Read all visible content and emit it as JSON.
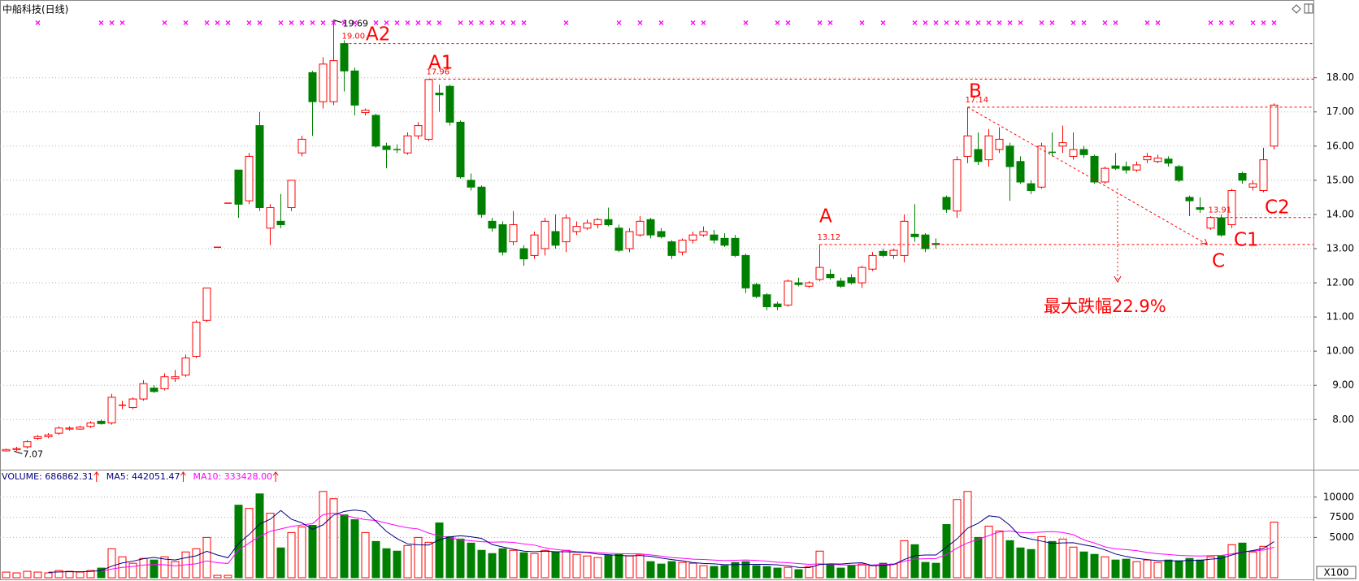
{
  "chart_data": {
    "type": "candlestick",
    "title": "中船科技(日线)",
    "candles": [
      [
        7.08,
        7.15,
        7.07,
        7.12
      ],
      [
        7.12,
        7.2,
        7.08,
        7.15
      ],
      [
        7.2,
        7.4,
        7.15,
        7.35
      ],
      [
        7.45,
        7.55,
        7.4,
        7.5
      ],
      [
        7.5,
        7.6,
        7.45,
        7.55
      ],
      [
        7.6,
        7.8,
        7.55,
        7.75
      ],
      [
        7.72,
        7.8,
        7.68,
        7.75
      ],
      [
        7.72,
        7.82,
        7.7,
        7.78
      ],
      [
        7.8,
        7.95,
        7.75,
        7.9
      ],
      [
        7.95,
        8.0,
        7.85,
        7.88
      ],
      [
        7.9,
        8.75,
        7.85,
        8.65
      ],
      [
        8.4,
        8.55,
        8.3,
        8.42
      ],
      [
        8.35,
        8.65,
        8.3,
        8.6
      ],
      [
        8.6,
        9.15,
        8.55,
        9.05
      ],
      [
        8.92,
        9.0,
        8.78,
        8.82
      ],
      [
        8.9,
        9.35,
        8.85,
        9.25
      ],
      [
        9.2,
        9.45,
        9.1,
        9.25
      ],
      [
        9.3,
        9.9,
        9.25,
        9.8
      ],
      [
        9.85,
        10.9,
        9.8,
        10.85
      ],
      [
        10.9,
        11.85,
        10.85,
        11.85
      ],
      [
        13.04,
        13.04,
        13.04,
        13.04
      ],
      [
        14.33,
        14.33,
        14.33,
        14.33
      ],
      [
        15.3,
        15.3,
        13.9,
        14.3
      ],
      [
        14.4,
        15.8,
        14.3,
        15.7
      ],
      [
        16.6,
        17.0,
        14.1,
        14.2
      ],
      [
        13.6,
        14.3,
        13.1,
        14.2
      ],
      [
        13.8,
        14.6,
        13.6,
        13.7
      ],
      [
        14.2,
        15.0,
        14.1,
        15.0
      ],
      [
        15.8,
        16.3,
        15.7,
        16.2
      ],
      [
        18.15,
        18.2,
        16.3,
        17.3
      ],
      [
        17.3,
        18.6,
        17.1,
        18.4
      ],
      [
        17.3,
        19.69,
        17.2,
        18.5
      ],
      [
        19.0,
        19.1,
        17.6,
        18.2
      ],
      [
        18.2,
        18.3,
        16.9,
        17.2
      ],
      [
        16.98,
        17.1,
        16.9,
        17.05
      ],
      [
        16.9,
        16.95,
        15.95,
        16.0
      ],
      [
        16.0,
        16.1,
        15.35,
        15.9
      ],
      [
        15.9,
        16.05,
        15.8,
        15.88
      ],
      [
        15.8,
        16.4,
        15.75,
        16.3
      ],
      [
        16.3,
        16.7,
        16.2,
        16.6
      ],
      [
        16.2,
        17.96,
        16.15,
        17.95
      ],
      [
        17.55,
        17.8,
        17.0,
        17.5
      ],
      [
        17.75,
        17.8,
        16.6,
        16.7
      ],
      [
        16.7,
        16.75,
        15.05,
        15.1
      ],
      [
        15.0,
        15.2,
        14.7,
        14.8
      ],
      [
        14.8,
        14.85,
        13.9,
        14.0
      ],
      [
        13.8,
        13.9,
        13.5,
        13.6
      ],
      [
        13.7,
        13.8,
        12.8,
        12.9
      ],
      [
        13.2,
        14.1,
        13.1,
        13.7
      ],
      [
        13.0,
        13.1,
        12.5,
        12.7
      ],
      [
        12.8,
        13.5,
        12.7,
        13.4
      ],
      [
        13.0,
        13.9,
        12.8,
        13.8
      ],
      [
        13.5,
        14.0,
        13.0,
        13.1
      ],
      [
        13.2,
        14.0,
        12.9,
        13.9
      ],
      [
        13.5,
        13.8,
        13.4,
        13.65
      ],
      [
        13.6,
        13.85,
        13.55,
        13.75
      ],
      [
        13.7,
        13.9,
        13.6,
        13.85
      ],
      [
        13.85,
        14.2,
        13.65,
        13.7
      ],
      [
        13.6,
        13.7,
        12.9,
        12.95
      ],
      [
        13.0,
        13.6,
        12.9,
        13.5
      ],
      [
        13.4,
        13.95,
        13.35,
        13.8
      ],
      [
        13.85,
        13.9,
        13.3,
        13.4
      ],
      [
        13.5,
        13.6,
        13.3,
        13.35
      ],
      [
        13.2,
        13.25,
        12.7,
        12.8
      ],
      [
        12.9,
        13.3,
        12.8,
        13.25
      ],
      [
        13.25,
        13.5,
        13.15,
        13.4
      ],
      [
        13.4,
        13.65,
        13.35,
        13.5
      ],
      [
        13.4,
        13.55,
        13.15,
        13.25
      ],
      [
        13.3,
        13.45,
        13.05,
        13.1
      ],
      [
        13.3,
        13.4,
        12.75,
        12.8
      ],
      [
        12.8,
        12.85,
        11.7,
        11.85
      ],
      [
        11.95,
        12.0,
        11.55,
        11.6
      ],
      [
        11.65,
        11.7,
        11.2,
        11.3
      ],
      [
        11.38,
        11.45,
        11.2,
        11.3
      ],
      [
        11.35,
        12.1,
        11.3,
        12.05
      ],
      [
        12.0,
        12.15,
        11.9,
        11.95
      ],
      [
        11.9,
        12.05,
        11.85,
        12.0
      ],
      [
        12.1,
        13.12,
        12.05,
        12.45
      ],
      [
        12.25,
        12.4,
        12.1,
        12.15
      ],
      [
        12.05,
        12.15,
        11.85,
        11.9
      ],
      [
        12.15,
        12.25,
        11.95,
        12.0
      ],
      [
        12.0,
        12.5,
        11.85,
        12.45
      ],
      [
        12.4,
        12.9,
        12.35,
        12.8
      ],
      [
        12.92,
        13.0,
        12.75,
        12.8
      ],
      [
        12.8,
        13.0,
        12.7,
        12.95
      ],
      [
        12.8,
        14.0,
        12.6,
        13.8
      ],
      [
        13.42,
        14.3,
        13.2,
        13.35
      ],
      [
        13.4,
        13.45,
        12.9,
        13.0
      ],
      [
        13.15,
        13.3,
        13.0,
        13.12
      ],
      [
        14.5,
        14.55,
        14.05,
        14.15
      ],
      [
        14.1,
        15.7,
        13.9,
        15.6
      ],
      [
        15.7,
        17.14,
        15.5,
        16.3
      ],
      [
        15.9,
        16.4,
        15.45,
        15.55
      ],
      [
        15.6,
        16.5,
        15.4,
        16.3
      ],
      [
        15.9,
        16.55,
        15.8,
        16.2
      ],
      [
        16.0,
        16.1,
        14.4,
        15.4
      ],
      [
        15.55,
        15.7,
        14.9,
        14.95
      ],
      [
        14.9,
        15.0,
        14.6,
        14.7
      ],
      [
        14.8,
        16.1,
        14.75,
        16.0
      ],
      [
        15.82,
        16.4,
        15.7,
        15.8
      ],
      [
        16.0,
        16.6,
        15.8,
        16.1
      ],
      [
        15.7,
        16.4,
        15.6,
        15.9
      ],
      [
        15.9,
        16.0,
        15.65,
        15.75
      ],
      [
        15.7,
        15.75,
        14.9,
        14.95
      ],
      [
        14.95,
        15.4,
        14.9,
        15.35
      ],
      [
        15.42,
        15.8,
        15.3,
        15.35
      ],
      [
        15.4,
        15.55,
        15.2,
        15.3
      ],
      [
        15.3,
        15.55,
        15.25,
        15.45
      ],
      [
        15.6,
        15.8,
        15.5,
        15.7
      ],
      [
        15.55,
        15.75,
        15.5,
        15.65
      ],
      [
        15.62,
        15.7,
        15.4,
        15.5
      ],
      [
        15.4,
        15.45,
        14.95,
        15.0
      ],
      [
        14.5,
        14.55,
        13.95,
        14.4
      ],
      [
        14.2,
        14.5,
        14.05,
        14.15
      ],
      [
        13.6,
        13.95,
        13.55,
        13.91
      ],
      [
        13.9,
        14.0,
        13.35,
        13.4
      ],
      [
        13.7,
        14.75,
        13.6,
        14.7
      ],
      [
        15.2,
        15.25,
        14.9,
        15.0
      ],
      [
        14.8,
        15.0,
        14.7,
        14.9
      ],
      [
        14.7,
        15.95,
        14.65,
        15.6
      ],
      [
        16.0,
        17.25,
        15.9,
        17.2
      ]
    ],
    "up_color": "#ff0000",
    "down_color": "#008000",
    "ylim": [
      6.58,
      20.18
    ],
    "yticks": [
      {
        "value": 8,
        "label": "8.00"
      },
      {
        "value": 9,
        "label": "9.00"
      },
      {
        "value": 10,
        "label": "10.00"
      },
      {
        "value": 11,
        "label": "11.00"
      },
      {
        "value": 12,
        "label": "12.00"
      },
      {
        "value": 13,
        "label": "13.00"
      },
      {
        "value": 14,
        "label": "14.00"
      },
      {
        "value": 15,
        "label": "15.00"
      },
      {
        "value": 16,
        "label": "16.00"
      },
      {
        "value": 17,
        "label": "17.00"
      },
      {
        "value": 18,
        "label": "18.00"
      }
    ],
    "grid": true,
    "high_label": {
      "value": 19.69,
      "label": "19.69"
    },
    "low_label": {
      "value": 7.07,
      "label": "7.07"
    },
    "levels": [
      {
        "value": 19.0,
        "label": "19.00"
      },
      {
        "value": 17.96,
        "label": "17.96"
      },
      {
        "value": 17.14,
        "label": "17.14"
      },
      {
        "value": 13.91,
        "label": "13.91"
      },
      {
        "value": 13.12,
        "label": "13.12"
      }
    ],
    "annotations": [
      "A2",
      "A1",
      "B",
      "A",
      "C",
      "C1",
      "C2",
      "最大跌幅22.9%"
    ],
    "signals": [
      3,
      9,
      10,
      11,
      15,
      17,
      19,
      20,
      21,
      23,
      24,
      26,
      27,
      28,
      29,
      30,
      31,
      32,
      33,
      35,
      36,
      37,
      38,
      39,
      40,
      41,
      43,
      44,
      45,
      46,
      47,
      48,
      49,
      53,
      58,
      60,
      62,
      65,
      66,
      70,
      73,
      74,
      77,
      78,
      81,
      83,
      86,
      87,
      88,
      89,
      90,
      91,
      92,
      93,
      94,
      95,
      96,
      98,
      99,
      101,
      102,
      104,
      105,
      108,
      109,
      114,
      115,
      116,
      118,
      119,
      120
    ],
    "signal_color": "#ff00ff",
    "volume_label": "VOLUME: 686862.31",
    "ma5_label": "MA5: 442051.47",
    "ma10_label": "MA10: 333428.00",
    "volume_unit": "X100",
    "volume": [
      700,
      600,
      800,
      700,
      600,
      900,
      800,
      700,
      900,
      1200,
      3600,
      2600,
      1800,
      2400,
      2200,
      2600,
      2000,
      3200,
      3600,
      5000,
      300,
      300,
      9000,
      8600,
      10400,
      8000,
      3700,
      5600,
      6300,
      6500,
      10700,
      9800,
      7800,
      7200,
      5600,
      4500,
      3600,
      3300,
      4000,
      5000,
      4400,
      6800,
      5100,
      4800,
      4300,
      3400,
      3000,
      3600,
      3400,
      3100,
      3000,
      3400,
      3200,
      3400,
      2900,
      2700,
      2500,
      2800,
      2900,
      2700,
      2900,
      2000,
      1700,
      2000,
      1900,
      1800,
      1500,
      1400,
      1500,
      1900,
      2000,
      1500,
      1400,
      1200,
      1300,
      1000,
      1400,
      3300,
      1600,
      1200,
      1500,
      1700,
      1500,
      1800,
      1700,
      4600,
      4100,
      1900,
      1800,
      6600,
      9700,
      10700,
      5000,
      6400,
      5800,
      4600,
      3700,
      3500,
      5100,
      4500,
      4800,
      3800,
      3200,
      2900,
      2600,
      2200,
      2300,
      2000,
      2200,
      1900,
      2200,
      2100,
      2400,
      2200,
      2600,
      2700,
      4100,
      4300,
      3200,
      3900,
      6900
    ],
    "ma5": [
      null,
      null,
      null,
      null,
      680,
      720,
      760,
      740,
      780,
      900,
      1440,
      1840,
      2060,
      2360,
      2520,
      2320,
      2200,
      2480,
      2720,
      3280,
      2820,
      2480,
      4240,
      5360,
      6660,
      7260,
      8340,
      7260,
      6800,
      6020,
      6560,
      7780,
      8220,
      8400,
      8220,
      7000,
      5740,
      4840,
      4200,
      4080,
      4060,
      4700,
      5060,
      5220,
      5080,
      4880,
      4120,
      3820,
      3540,
      3300,
      3220,
      3300,
      3220,
      3220,
      3180,
      3120,
      2940,
      2860,
      2760,
      2720,
      2760,
      2660,
      2440,
      2260,
      2100,
      1880,
      1780,
      1720,
      1620,
      1620,
      1660,
      1660,
      1660,
      1600,
      1480,
      1280,
      1260,
      1640,
      1720,
      1700,
      1800,
      1860,
      1500,
      1540,
      1640,
      2260,
      2740,
      2820,
      2820,
      3800,
      4820,
      6140,
      6760,
      7680,
      7520,
      6500,
      5100,
      4800,
      4540,
      4260,
      4320,
      4340,
      4080,
      3840,
      3460,
      2940,
      2640,
      2400,
      2260,
      2120,
      2120,
      2080,
      2160,
      2160,
      2300,
      2400,
      2820,
      3180,
      3380,
      3640,
      4480
    ],
    "ma10": [
      null,
      null,
      null,
      null,
      null,
      null,
      null,
      null,
      null,
      790,
      1080,
      1280,
      1400,
      1570,
      1650,
      1610,
      1480,
      1610,
      1740,
      2090,
      1870,
      1770,
      3440,
      4300,
      5130,
      5760,
      6060,
      6360,
      6550,
      6700,
      7840,
      8020,
      7740,
      7460,
      7200,
      7100,
      6780,
      6460,
      6200,
      6050,
      5530,
      5220,
      4950,
      4710,
      4580,
      4470,
      4410,
      4440,
      4380,
      4190,
      4050,
      3710,
      3520,
      3380,
      3240,
      3170,
      3120,
      3040,
      2990,
      2970,
      2960,
      2830,
      2680,
      2510,
      2420,
      2310,
      2270,
      2190,
      2130,
      2170,
      2210,
      2160,
      2050,
      1930,
      1870,
      1760,
      1660,
      1720,
      1670,
      1600,
      1560,
      1580,
      1590,
      1650,
      1680,
      2050,
      2320,
      2350,
      2380,
      2870,
      3690,
      4330,
      4770,
      5230,
      5680,
      5800,
      5590,
      5580,
      5670,
      5720,
      5620,
      5340,
      4700,
      4310,
      3830,
      3580,
      3490,
      3360,
      3140,
      2970,
      2880,
      2770,
      2720,
      2690,
      2750,
      2770,
      2960,
      3200,
      3300,
      3440,
      3780
    ],
    "ma5_color": "#000080",
    "ma10_color": "#ff00ff",
    "vlim": [
      0,
      13200
    ],
    "vticks": [
      5000,
      7500,
      10000
    ]
  }
}
